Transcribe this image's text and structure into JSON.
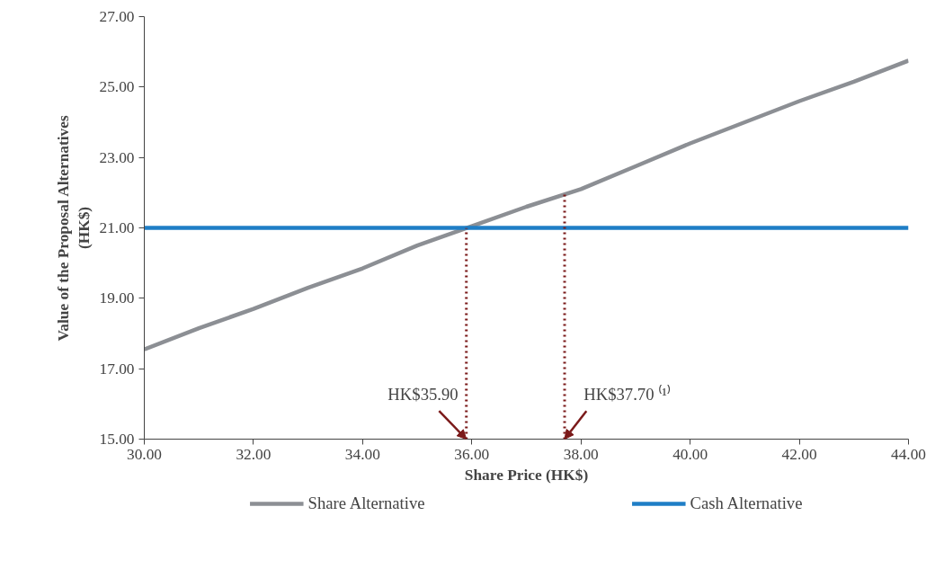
{
  "chart_data": {
    "type": "line",
    "xlabel": "Share Price (HK$)",
    "ylabel": "Value of the Proposal Alternatives (HK$)",
    "x": [
      30,
      31,
      32,
      33,
      34,
      35,
      36,
      37,
      38,
      39,
      40,
      41,
      42,
      43,
      44
    ],
    "series": [
      {
        "name": "Share Alternative",
        "color": "#8c8f94",
        "values": [
          17.55,
          18.15,
          18.7,
          19.3,
          19.85,
          20.5,
          21.05,
          21.6,
          22.1,
          22.75,
          23.4,
          24.0,
          24.6,
          25.15,
          25.75
        ]
      },
      {
        "name": "Cash Alternative",
        "color": "#1f7ec6",
        "values": [
          21.0,
          21.0,
          21.0,
          21.0,
          21.0,
          21.0,
          21.0,
          21.0,
          21.0,
          21.0,
          21.0,
          21.0,
          21.0,
          21.0,
          21.0
        ]
      }
    ],
    "ref_lines": [
      {
        "axis": "x",
        "value": 35.9,
        "label": "HK$35.90",
        "color": "#7b1a1a",
        "line_style": "dotted"
      },
      {
        "axis": "x",
        "value": 37.7,
        "label": "HK$37.70 ⁽¹⁾",
        "color": "#7b1a1a",
        "line_style": "dotted"
      }
    ],
    "xlim": [
      30,
      44
    ],
    "xticks": [
      {
        "value": 30,
        "label": "30.00"
      },
      {
        "value": 32,
        "label": "32.00"
      },
      {
        "value": 34,
        "label": "34.00"
      },
      {
        "value": 36,
        "label": "36.00"
      },
      {
        "value": 38,
        "label": "38.00"
      },
      {
        "value": 40,
        "label": "40.00"
      },
      {
        "value": 42,
        "label": "42.00"
      },
      {
        "value": 44,
        "label": "44.00"
      }
    ],
    "ylim": [
      15,
      27
    ],
    "yticks": [
      {
        "value": 15,
        "label": "15.00"
      },
      {
        "value": 17,
        "label": "17.00"
      },
      {
        "value": 19,
        "label": "19.00"
      },
      {
        "value": 21,
        "label": "21.00"
      },
      {
        "value": 23,
        "label": "23.00"
      },
      {
        "value": 25,
        "label": "25.00"
      },
      {
        "value": 27,
        "label": "27.00"
      }
    ],
    "grid": false,
    "legend": "bottom",
    "marker": "none",
    "line_style": "solid"
  }
}
